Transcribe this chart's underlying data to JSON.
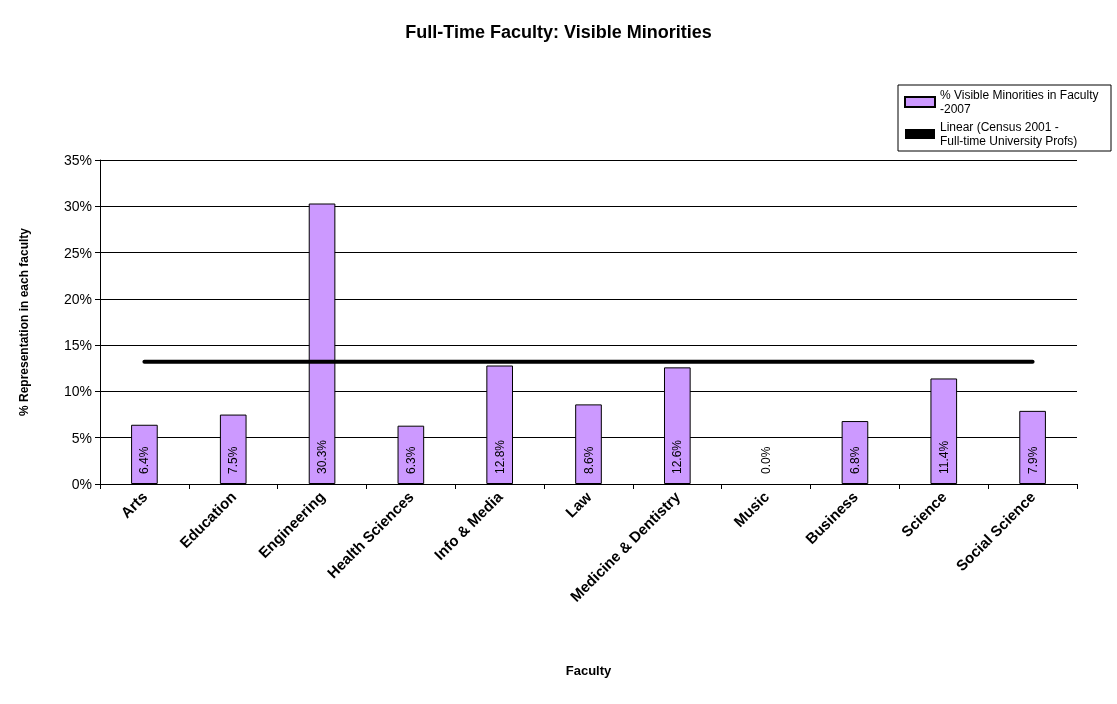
{
  "chart_data": {
    "type": "bar",
    "title": "Full-Time Faculty: Visible Minorities",
    "xlabel": "Faculty",
    "ylabel": "% Representation in each faculty",
    "categories": [
      "Arts",
      "Education",
      "Engineering",
      "Health Sciences",
      "Info & Media",
      "Law",
      "Medicine & Dentistry",
      "Music",
      "Business",
      "Science",
      "Social Science"
    ],
    "series": [
      {
        "name": "% Visible Minorities in Faculty -2007",
        "color": "#cc99ff",
        "values": [
          6.4,
          7.5,
          30.3,
          6.3,
          12.8,
          8.6,
          12.6,
          0.0,
          6.8,
          11.4,
          7.9
        ],
        "value_labels": [
          "6.4%",
          "7.5%",
          "30.3%",
          "6.3%",
          "12.8%",
          "8.6%",
          "12.6%",
          "0.0%",
          "6.8%",
          "11.4%",
          "7.9%"
        ]
      },
      {
        "name": "Linear (Census 2001 - Full-time University Profs)",
        "type": "line",
        "color": "#000000",
        "marker": "none",
        "line_style": "solid",
        "values": [
          13.2,
          13.2,
          13.2,
          13.2,
          13.2,
          13.2,
          13.2,
          13.2,
          13.2,
          13.2,
          13.2
        ]
      }
    ],
    "ylim": [
      0,
      35
    ],
    "yticks": [
      {
        "value": 0,
        "label": "0%"
      },
      {
        "value": 5,
        "label": "5%"
      },
      {
        "value": 10,
        "label": "10%"
      },
      {
        "value": 15,
        "label": "15%"
      },
      {
        "value": 20,
        "label": "20%"
      },
      {
        "value": 25,
        "label": "25%"
      },
      {
        "value": 30,
        "label": "30%"
      },
      {
        "value": 35,
        "label": "35%"
      }
    ],
    "grid": "y",
    "legend": "top right"
  }
}
